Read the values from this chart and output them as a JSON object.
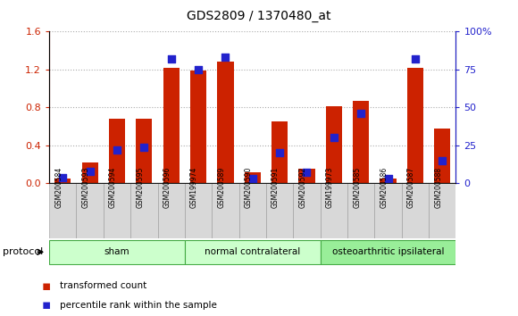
{
  "title": "GDS2809 / 1370480_at",
  "samples": [
    "GSM200584",
    "GSM200593",
    "GSM200594",
    "GSM200595",
    "GSM200596",
    "GSM199974",
    "GSM200589",
    "GSM200590",
    "GSM200591",
    "GSM200592",
    "GSM199973",
    "GSM200585",
    "GSM200586",
    "GSM200587",
    "GSM200588"
  ],
  "red_values": [
    0.05,
    0.22,
    0.68,
    0.68,
    1.22,
    1.19,
    1.28,
    0.12,
    0.65,
    0.15,
    0.81,
    0.87,
    0.05,
    1.22,
    0.58
  ],
  "blue_values": [
    4,
    8,
    22,
    24,
    82,
    75,
    83,
    3,
    20,
    7,
    30,
    46,
    3,
    82,
    15
  ],
  "group_labels": [
    "sham",
    "normal contralateral",
    "osteoarthritic ipsilateral"
  ],
  "group_colors": [
    "#ccffcc",
    "#ccffcc",
    "#99ee99"
  ],
  "group_starts": [
    0,
    5,
    10
  ],
  "group_ends": [
    5,
    10,
    15
  ],
  "ylim_left": [
    0,
    1.6
  ],
  "ylim_right": [
    0,
    100
  ],
  "yticks_left": [
    0,
    0.4,
    0.8,
    1.2,
    1.6
  ],
  "yticks_right": [
    0,
    25,
    50,
    75,
    100
  ],
  "bar_color": "#cc2200",
  "blue_color": "#2222cc",
  "bg_color": "#ffffff",
  "plot_bg": "#ffffff",
  "grid_color": "#aaaaaa",
  "protocol_label": "protocol",
  "legend1": "transformed count",
  "legend2": "percentile rank within the sample"
}
